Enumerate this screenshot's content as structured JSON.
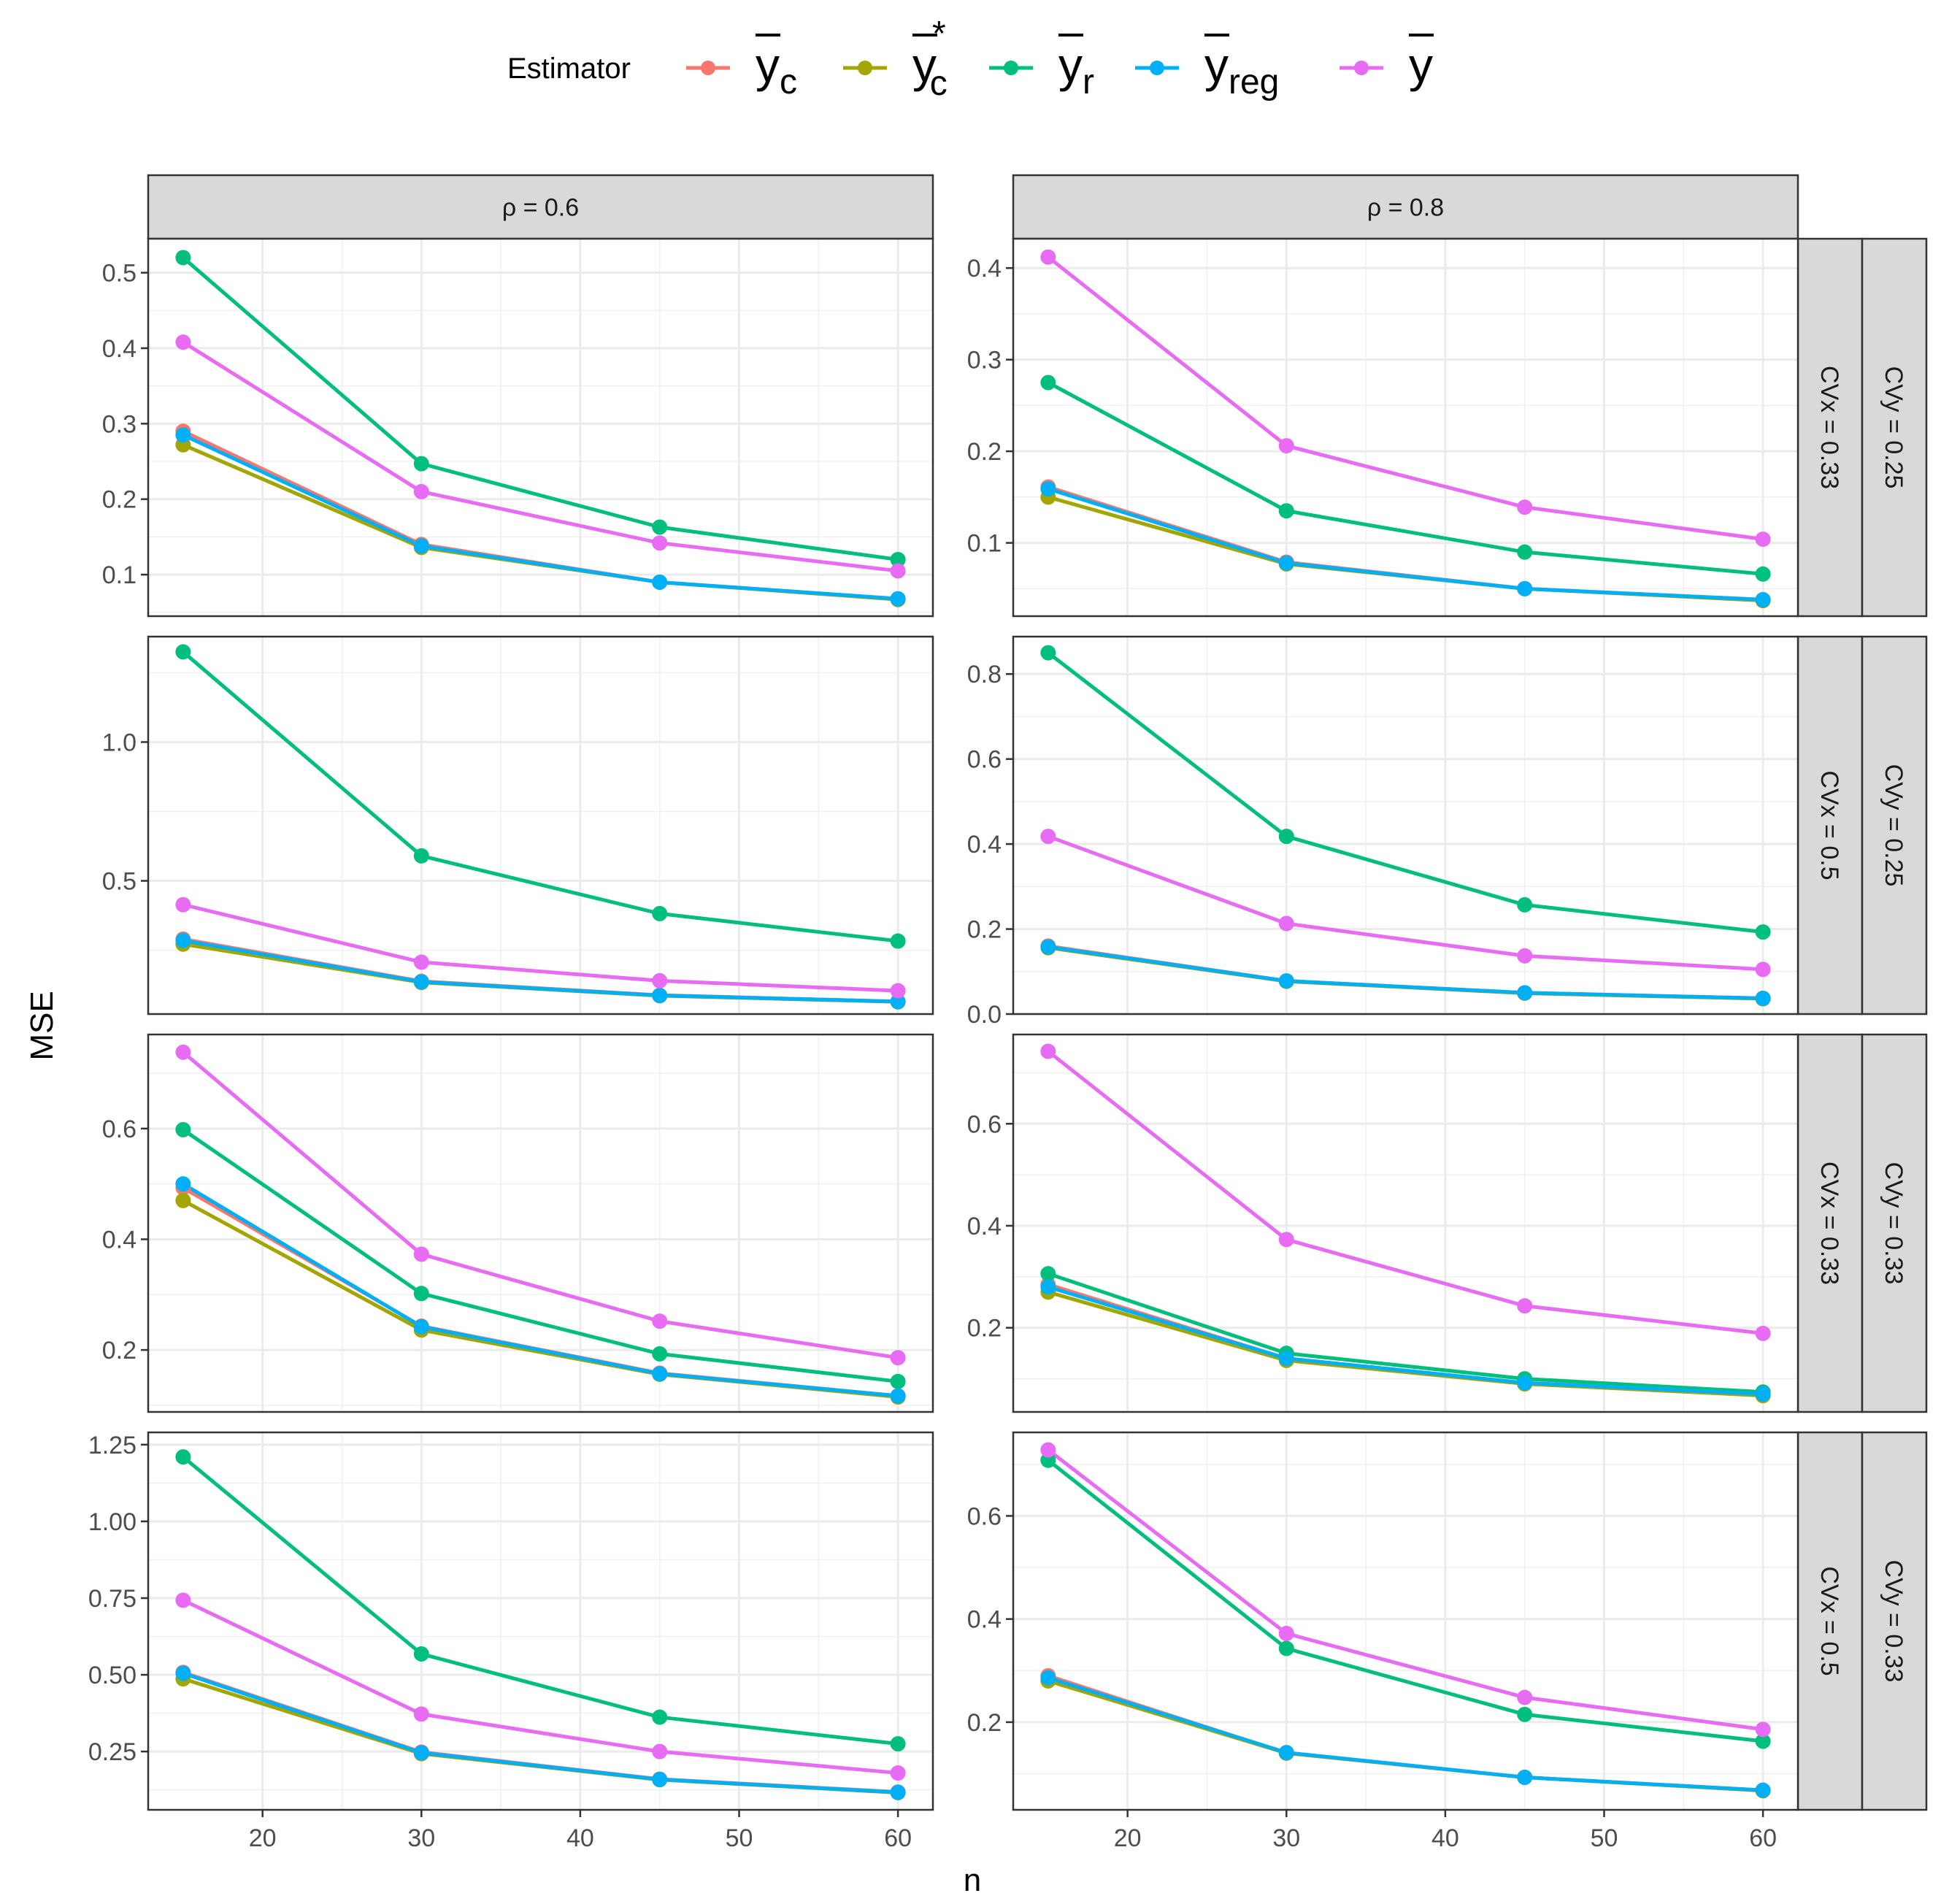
{
  "colors": {
    "yc": "#F8766D",
    "yc_star": "#A3A500",
    "yr": "#00BF7D",
    "yreg": "#00B0F6",
    "ybar": "#E76BF3"
  },
  "legend": {
    "title": "Estimator",
    "items": [
      {
        "key": "yc",
        "base": "y",
        "sub": "c",
        "sup": ""
      },
      {
        "key": "yc_star",
        "base": "y",
        "sub": "c",
        "sup": "*"
      },
      {
        "key": "yr",
        "base": "y",
        "sub": "r",
        "sup": ""
      },
      {
        "key": "yreg",
        "base": "y",
        "sub": "reg",
        "sup": ""
      },
      {
        "key": "ybar",
        "base": "y",
        "sub": "",
        "sup": ""
      }
    ]
  },
  "chart_data": {
    "type": "line",
    "xlabel": "n",
    "ylabel": "MSE",
    "grid": true,
    "legend_position": "top",
    "x": [
      15,
      30,
      45,
      60
    ],
    "x_ticks": [
      20,
      30,
      40,
      50,
      60
    ],
    "xlim": [
      12.8,
      62.2
    ],
    "column_strips": [
      "ρ = 0.6",
      "ρ = 0.8"
    ],
    "row_strips": [
      {
        "cvx": "CVx = 0.33",
        "cvy": "CVy = 0.25"
      },
      {
        "cvx": "CVx = 0.5",
        "cvy": "CVy = 0.25"
      },
      {
        "cvx": "CVx = 0.33",
        "cvy": "CVy = 0.33"
      },
      {
        "cvx": "CVx = 0.5",
        "cvy": "CVy = 0.33"
      }
    ],
    "panels": [
      {
        "row": 0,
        "col": 0,
        "ylim": [
          0.045,
          0.545
        ],
        "y_ticks": [
          0.1,
          0.2,
          0.3,
          0.4,
          0.5
        ],
        "y_tick_labels": [
          "0.1",
          "0.2",
          "0.3",
          "0.4",
          "0.5"
        ],
        "series": [
          {
            "key": "yc",
            "values": [
              0.29,
              0.14,
              0.09,
              0.068
            ]
          },
          {
            "key": "yc_star",
            "values": [
              0.272,
              0.136,
              0.09,
              0.067
            ]
          },
          {
            "key": "yr",
            "values": [
              0.52,
              0.247,
              0.163,
              0.12
            ]
          },
          {
            "key": "yreg",
            "values": [
              0.285,
              0.138,
              0.09,
              0.068
            ]
          },
          {
            "key": "ybar",
            "values": [
              0.408,
              0.21,
              0.142,
              0.105
            ]
          }
        ]
      },
      {
        "row": 0,
        "col": 1,
        "ylim": [
          0.02,
          0.432
        ],
        "y_ticks": [
          0.1,
          0.2,
          0.3,
          0.4
        ],
        "y_tick_labels": [
          "0.1",
          "0.2",
          "0.3",
          "0.4"
        ],
        "series": [
          {
            "key": "yc",
            "values": [
              0.161,
              0.079,
              0.05,
              0.038
            ]
          },
          {
            "key": "yc_star",
            "values": [
              0.15,
              0.077,
              0.05,
              0.037
            ]
          },
          {
            "key": "yr",
            "values": [
              0.275,
              0.135,
              0.09,
              0.066
            ]
          },
          {
            "key": "yreg",
            "values": [
              0.159,
              0.078,
              0.05,
              0.038
            ]
          },
          {
            "key": "ybar",
            "values": [
              0.412,
              0.206,
              0.139,
              0.104
            ]
          }
        ]
      },
      {
        "row": 1,
        "col": 0,
        "ylim": [
          0.02,
          1.38
        ],
        "y_ticks": [
          0.5,
          1.0
        ],
        "y_tick_labels": [
          "0.5",
          "1.0"
        ],
        "series": [
          {
            "key": "yc",
            "values": [
              0.29,
              0.138,
              0.088,
              0.065
            ]
          },
          {
            "key": "yc_star",
            "values": [
              0.272,
              0.134,
              0.086,
              0.064
            ]
          },
          {
            "key": "yr",
            "values": [
              1.325,
              0.59,
              0.382,
              0.283
            ]
          },
          {
            "key": "yreg",
            "values": [
              0.285,
              0.136,
              0.087,
              0.065
            ]
          },
          {
            "key": "ybar",
            "values": [
              0.414,
              0.207,
              0.14,
              0.104
            ]
          }
        ]
      },
      {
        "row": 1,
        "col": 1,
        "ylim": [
          0.0,
          0.888
        ],
        "y_ticks": [
          0.0,
          0.2,
          0.4,
          0.6,
          0.8
        ],
        "y_tick_labels": [
          "0.0",
          "0.2",
          "0.4",
          "0.6",
          "0.8"
        ],
        "series": [
          {
            "key": "yc",
            "values": [
              0.16,
              0.078,
              0.05,
              0.037
            ]
          },
          {
            "key": "yc_star",
            "values": [
              0.156,
              0.077,
              0.049,
              0.036
            ]
          },
          {
            "key": "yr",
            "values": [
              0.85,
              0.418,
              0.257,
              0.193
            ]
          },
          {
            "key": "yreg",
            "values": [
              0.158,
              0.078,
              0.05,
              0.037
            ]
          },
          {
            "key": "ybar",
            "values": [
              0.418,
              0.213,
              0.137,
              0.105
            ]
          }
        ]
      },
      {
        "row": 2,
        "col": 0,
        "ylim": [
          0.088,
          0.77
        ],
        "y_ticks": [
          0.2,
          0.4,
          0.6
        ],
        "y_tick_labels": [
          "0.2",
          "0.4",
          "0.6"
        ],
        "series": [
          {
            "key": "yc",
            "values": [
              0.493,
              0.243,
              0.158,
              0.117
            ]
          },
          {
            "key": "yc_star",
            "values": [
              0.47,
              0.236,
              0.156,
              0.115
            ]
          },
          {
            "key": "yr",
            "values": [
              0.598,
              0.302,
              0.193,
              0.143
            ]
          },
          {
            "key": "yreg",
            "values": [
              0.5,
              0.242,
              0.157,
              0.117
            ]
          },
          {
            "key": "ybar",
            "values": [
              0.738,
              0.373,
              0.252,
              0.186
            ]
          }
        ]
      },
      {
        "row": 2,
        "col": 1,
        "ylim": [
          0.035,
          0.775
        ],
        "y_ticks": [
          0.2,
          0.4,
          0.6
        ],
        "y_tick_labels": [
          "0.2",
          "0.4",
          "0.6"
        ],
        "series": [
          {
            "key": "yc",
            "values": [
              0.285,
              0.14,
              0.092,
              0.07
            ]
          },
          {
            "key": "yc_star",
            "values": [
              0.27,
              0.136,
              0.09,
              0.067
            ]
          },
          {
            "key": "yr",
            "values": [
              0.306,
              0.15,
              0.1,
              0.074
            ]
          },
          {
            "key": "yreg",
            "values": [
              0.28,
              0.14,
              0.092,
              0.07
            ]
          },
          {
            "key": "ybar",
            "values": [
              0.742,
              0.373,
              0.243,
              0.189
            ]
          }
        ]
      },
      {
        "row": 3,
        "col": 0,
        "ylim": [
          0.06,
          1.29
        ],
        "y_ticks": [
          0.25,
          0.5,
          0.75,
          1.0,
          1.25
        ],
        "y_tick_labels": [
          "0.25",
          "0.50",
          "0.75",
          "1.00",
          "1.25"
        ],
        "series": [
          {
            "key": "yc",
            "values": [
              0.508,
              0.248,
              0.16,
              0.118
            ]
          },
          {
            "key": "yc_star",
            "values": [
              0.487,
              0.243,
              0.158,
              0.116
            ]
          },
          {
            "key": "yr",
            "values": [
              1.21,
              0.568,
              0.362,
              0.275
            ]
          },
          {
            "key": "yreg",
            "values": [
              0.505,
              0.246,
              0.159,
              0.117
            ]
          },
          {
            "key": "ybar",
            "values": [
              0.743,
              0.372,
              0.25,
              0.18
            ]
          }
        ]
      },
      {
        "row": 3,
        "col": 1,
        "ylim": [
          0.03,
          0.762
        ],
        "y_ticks": [
          0.2,
          0.4,
          0.6
        ],
        "y_tick_labels": [
          "0.2",
          "0.4",
          "0.6"
        ],
        "series": [
          {
            "key": "yc",
            "values": [
              0.29,
              0.14,
              0.093,
              0.068
            ]
          },
          {
            "key": "yc_star",
            "values": [
              0.28,
              0.14,
              0.093,
              0.067
            ]
          },
          {
            "key": "yr",
            "values": [
              0.708,
              0.343,
              0.215,
              0.163
            ]
          },
          {
            "key": "yreg",
            "values": [
              0.286,
              0.141,
              0.093,
              0.068
            ]
          },
          {
            "key": "ybar",
            "values": [
              0.728,
              0.372,
              0.248,
              0.186
            ]
          }
        ]
      }
    ]
  }
}
